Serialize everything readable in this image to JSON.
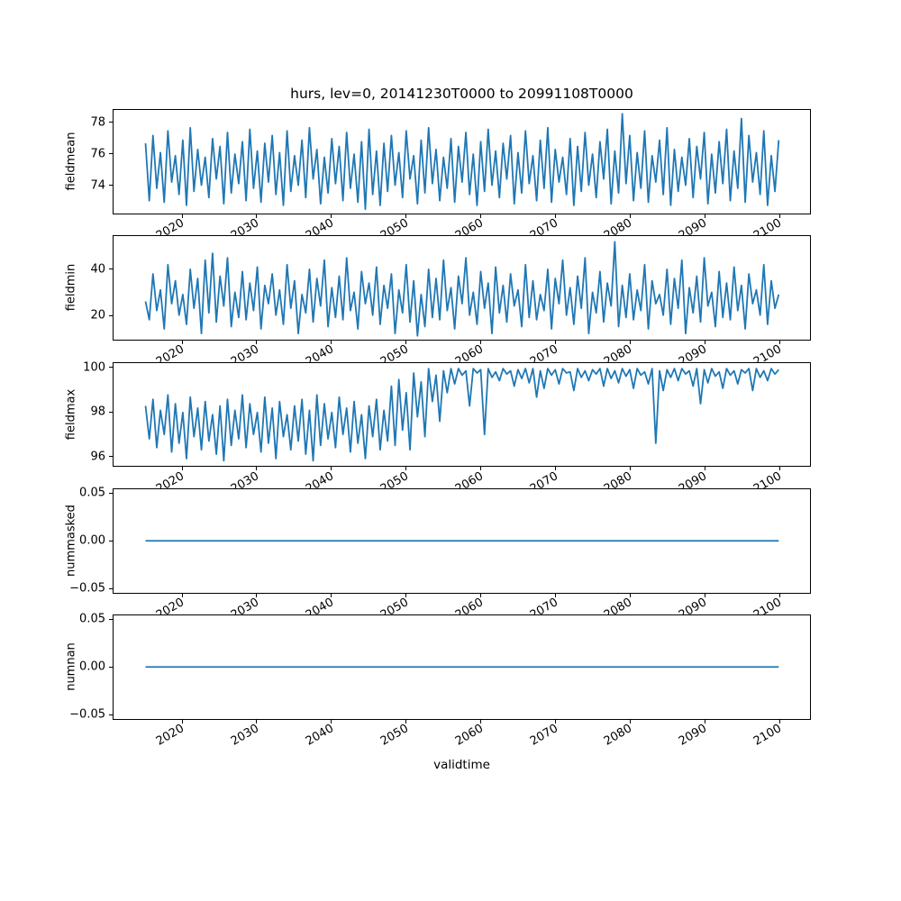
{
  "figure": {
    "title": "hurs, lev=0, 20141230T0000 to 20991108T0000",
    "line_color": "#1f77b4",
    "background": "#ffffff",
    "text_color": "#000000"
  },
  "x_axis": {
    "label": "validtime",
    "lim": [
      2010.7,
      2104.2
    ],
    "ticks": [
      2020,
      2030,
      2040,
      2050,
      2060,
      2070,
      2080,
      2090,
      2100
    ],
    "tick_labels": [
      "2020",
      "2030",
      "2040",
      "2050",
      "2060",
      "2070",
      "2080",
      "2090",
      "2100"
    ],
    "tick_rotation_deg": 30,
    "grid": false
  },
  "chart_data": [
    {
      "type": "line",
      "ylabel": "fieldmean",
      "ylim": [
        72.2,
        78.85
      ],
      "yticks": [
        74,
        76,
        78
      ],
      "ytick_labels": [
        "74",
        "76",
        "78"
      ],
      "x_start": 2015,
      "x_step": 0.5,
      "y": [
        76.7,
        73.0,
        77.2,
        73.8,
        76.1,
        72.9,
        77.5,
        74.2,
        75.9,
        73.4,
        76.9,
        72.7,
        77.7,
        73.6,
        76.3,
        74.0,
        75.8,
        73.2,
        77.0,
        74.4,
        76.5,
        72.8,
        77.4,
        73.5,
        76.0,
        74.1,
        76.8,
        73.0,
        77.6,
        73.8,
        76.2,
        72.9,
        76.7,
        74.2,
        77.2,
        73.4,
        76.1,
        72.7,
        77.5,
        73.6,
        75.9,
        74.0,
        76.9,
        73.2,
        77.7,
        74.4,
        76.3,
        72.8,
        75.8,
        73.5,
        77.0,
        74.1,
        76.5,
        73.0,
        77.4,
        73.8,
        76.0,
        72.9,
        76.8,
        72.45,
        77.6,
        73.4,
        76.2,
        72.7,
        76.7,
        73.6,
        77.2,
        74.0,
        76.1,
        73.2,
        77.5,
        74.4,
        75.9,
        72.8,
        76.9,
        73.5,
        77.7,
        74.1,
        76.3,
        73.0,
        75.8,
        73.8,
        77.0,
        72.9,
        76.5,
        74.2,
        77.4,
        73.4,
        76.0,
        72.7,
        76.8,
        73.6,
        77.6,
        74.0,
        76.2,
        73.2,
        76.7,
        74.4,
        77.2,
        72.8,
        76.1,
        73.5,
        77.5,
        74.1,
        75.9,
        73.0,
        76.9,
        73.8,
        77.7,
        72.9,
        76.3,
        74.2,
        75.8,
        73.4,
        77.0,
        72.7,
        76.5,
        73.6,
        77.4,
        74.0,
        76.0,
        73.2,
        76.8,
        74.4,
        77.6,
        72.8,
        76.2,
        73.5,
        78.6,
        74.1,
        77.2,
        73.0,
        76.1,
        73.8,
        77.5,
        72.9,
        75.9,
        74.2,
        76.9,
        73.4,
        77.7,
        72.7,
        76.3,
        73.6,
        75.8,
        74.0,
        77.0,
        73.2,
        76.5,
        74.4,
        77.4,
        72.8,
        76.0,
        73.5,
        76.8,
        74.1,
        77.6,
        73.0,
        76.2,
        73.8,
        78.3,
        72.9,
        77.2,
        74.2,
        76.1,
        73.4,
        77.5,
        72.7,
        75.9,
        73.6,
        76.9
      ]
    },
    {
      "type": "line",
      "ylabel": "fieldmin",
      "ylim": [
        9.5,
        54.5
      ],
      "yticks": [
        20,
        40
      ],
      "ytick_labels": [
        "20",
        "40"
      ],
      "x_start": 2015,
      "x_step": 0.5,
      "y": [
        26,
        18,
        38,
        22,
        31,
        14,
        42,
        25,
        35,
        20,
        29,
        16,
        40,
        23,
        36,
        12,
        44,
        21,
        47,
        17,
        37,
        24,
        45,
        15,
        30,
        19,
        39,
        18,
        34,
        22,
        41,
        14,
        33,
        25,
        38,
        20,
        31,
        16,
        42,
        23,
        35,
        12,
        29,
        21,
        40,
        17,
        36,
        24,
        44,
        15,
        32,
        19,
        37,
        18,
        45,
        22,
        30,
        14,
        39,
        25,
        34,
        20,
        41,
        16,
        33,
        23,
        38,
        12,
        31,
        21,
        42,
        17,
        35,
        11,
        29,
        15,
        40,
        19,
        36,
        18,
        44,
        22,
        32,
        14,
        37,
        25,
        45,
        20,
        30,
        16,
        39,
        23,
        34,
        12,
        41,
        21,
        33,
        17,
        38,
        24,
        31,
        15,
        42,
        19,
        35,
        18,
        29,
        22,
        40,
        14,
        36,
        25,
        44,
        20,
        32,
        16,
        37,
        23,
        45,
        12,
        30,
        21,
        39,
        17,
        34,
        24,
        52,
        15,
        33,
        19,
        38,
        18,
        31,
        22,
        42,
        14,
        35,
        25,
        29,
        20,
        40,
        16,
        36,
        23,
        44,
        12,
        32,
        21,
        37,
        17,
        45,
        24,
        30,
        15,
        39,
        19,
        34,
        18,
        41,
        22,
        33,
        14,
        38,
        25,
        31,
        20,
        42,
        16,
        35,
        23,
        29
      ]
    },
    {
      "type": "line",
      "ylabel": "fieldmax",
      "ylim": [
        95.55,
        100.25
      ],
      "yticks": [
        96,
        98,
        100
      ],
      "ytick_labels": [
        "96",
        "98",
        "100"
      ],
      "x_start": 2015,
      "x_step": 0.5,
      "y": [
        98.3,
        96.8,
        98.6,
        96.4,
        98.1,
        97.0,
        98.8,
        96.2,
        98.4,
        96.6,
        98.0,
        95.9,
        98.7,
        96.9,
        98.2,
        96.3,
        98.5,
        96.7,
        97.9,
        96.1,
        98.3,
        95.8,
        98.6,
        96.5,
        98.1,
        96.8,
        98.8,
        96.4,
        98.4,
        97.0,
        98.0,
        96.2,
        98.7,
        96.6,
        98.2,
        95.9,
        98.5,
        96.9,
        97.9,
        96.3,
        98.3,
        96.7,
        98.6,
        96.1,
        98.1,
        95.8,
        98.8,
        96.5,
        98.4,
        96.8,
        98.0,
        96.4,
        98.7,
        97.0,
        98.2,
        96.2,
        98.5,
        96.6,
        97.9,
        95.9,
        98.3,
        96.9,
        98.6,
        96.3,
        98.1,
        96.7,
        99.2,
        96.5,
        99.5,
        97.2,
        98.9,
        96.3,
        99.8,
        97.8,
        99.4,
        96.9,
        100.0,
        98.5,
        99.7,
        97.6,
        99.9,
        98.9,
        100.0,
        99.3,
        100.0,
        99.7,
        99.9,
        98.3,
        100.0,
        99.8,
        99.95,
        97.0,
        100.0,
        99.6,
        99.85,
        99.45,
        100.0,
        99.75,
        99.9,
        99.2,
        99.95,
        99.55,
        100.0,
        99.35,
        100.0,
        98.7,
        99.9,
        99.1,
        100.0,
        99.7,
        99.95,
        99.3,
        100.0,
        99.8,
        99.85,
        99.0,
        100.0,
        99.6,
        99.9,
        99.45,
        99.95,
        99.75,
        100.0,
        99.2,
        100.0,
        99.55,
        99.9,
        99.35,
        100.0,
        99.65,
        99.95,
        99.1,
        100.0,
        99.7,
        99.85,
        99.3,
        100.0,
        96.6,
        99.9,
        99.0,
        99.95,
        99.6,
        100.0,
        99.45,
        100.0,
        99.75,
        99.9,
        99.2,
        100.0,
        98.4,
        99.95,
        99.35,
        100.0,
        99.65,
        99.85,
        99.1,
        100.0,
        99.7,
        99.9,
        99.3,
        99.95,
        99.8,
        100.0,
        99.0,
        100.0,
        99.6,
        99.9,
        99.45,
        100.0,
        99.75,
        99.95
      ]
    },
    {
      "type": "line",
      "ylabel": "nummasked",
      "ylim": [
        -0.055,
        0.055
      ],
      "yticks": [
        -0.05,
        0.0,
        0.05
      ],
      "ytick_labels": [
        "−0.05",
        "0.00",
        "0.05"
      ],
      "x_start": 2015,
      "x_step": 85,
      "y": [
        0,
        0
      ]
    },
    {
      "type": "line",
      "ylabel": "numnan",
      "ylim": [
        -0.055,
        0.055
      ],
      "yticks": [
        -0.05,
        0.0,
        0.05
      ],
      "ytick_labels": [
        "−0.05",
        "0.00",
        "0.05"
      ],
      "x_start": 2015,
      "x_step": 85,
      "y": [
        0,
        0
      ]
    }
  ]
}
